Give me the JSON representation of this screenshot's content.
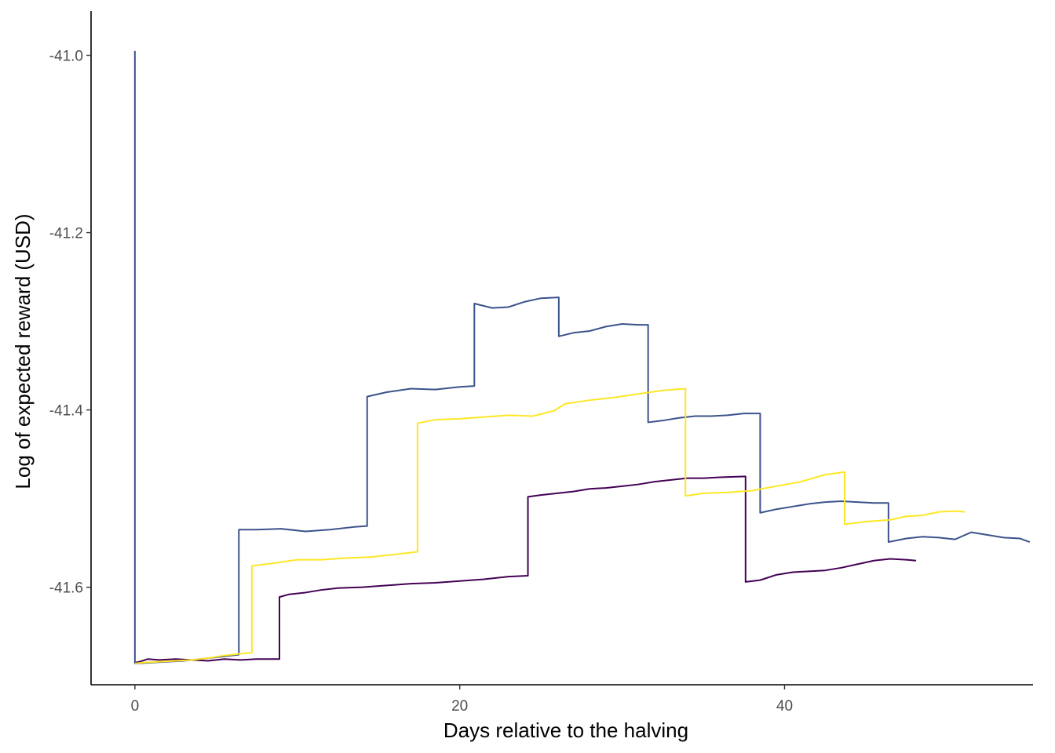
{
  "chart_data": {
    "type": "line",
    "title": "",
    "xlabel": "Days relative to the halving",
    "ylabel": "Log of expected reward (USD)",
    "xlim": [
      -2.7,
      55.3
    ],
    "ylim": [
      -41.71,
      -40.95
    ],
    "x_ticks": [
      0,
      20,
      40
    ],
    "y_ticks": [
      -41.6,
      -41.4,
      -41.2,
      -41.0
    ],
    "y_tick_labels": [
      "-41.6",
      "-41.4",
      "-41.2",
      "-41.0"
    ],
    "grid": false,
    "legend": "none",
    "series": [
      {
        "color": "#440154",
        "x": [
          0,
          0.3,
          0.8,
          1.5,
          2.5,
          3.5,
          4.5,
          5.5,
          6.5,
          7.5,
          8.9,
          8.9,
          9.5,
          10.5,
          11.5,
          12.5,
          14,
          15.5,
          17,
          18.5,
          20,
          21.5,
          23,
          24.2,
          24.2,
          25,
          26,
          27,
          28,
          29,
          30,
          31,
          32,
          33,
          34,
          35,
          36,
          37.6,
          37.6,
          38.5,
          39.5,
          40.5,
          41.5,
          42.5,
          43.5,
          44.5,
          45.5,
          46.5,
          47.5,
          48.1
        ],
        "values": [
          -41.685,
          -41.684,
          -41.681,
          -41.682,
          -41.681,
          -41.682,
          -41.683,
          -41.681,
          -41.682,
          -41.681,
          -41.681,
          -41.611,
          -41.608,
          -41.606,
          -41.603,
          -41.601,
          -41.6,
          -41.598,
          -41.596,
          -41.595,
          -41.593,
          -41.591,
          -41.588,
          -41.587,
          -41.498,
          -41.496,
          -41.494,
          -41.492,
          -41.489,
          -41.488,
          -41.486,
          -41.484,
          -41.481,
          -41.479,
          -41.477,
          -41.477,
          -41.476,
          -41.475,
          -41.594,
          -41.592,
          -41.586,
          -41.583,
          -41.582,
          -41.581,
          -41.578,
          -41.574,
          -41.57,
          -41.568,
          -41.569,
          -41.57
        ]
      },
      {
        "color": "#3b528b",
        "x": [
          0,
          0,
          0.1,
          1,
          2,
          3,
          4,
          5,
          6.4,
          6.4,
          7.5,
          9,
          10.5,
          12,
          13.5,
          14.3,
          14.3,
          15.5,
          17,
          18.5,
          20,
          20.9,
          20.9,
          22,
          23,
          24,
          25,
          26.1,
          26.1,
          27,
          28,
          29,
          30,
          31,
          31.6,
          31.6,
          32.5,
          33.5,
          34.5,
          35.5,
          36.5,
          37.5,
          38.5,
          38.5,
          39.5,
          40.5,
          41.5,
          42.5,
          43.5,
          44.5,
          45.5,
          46.4,
          46.4,
          47.5,
          48.5,
          49.5,
          50.5,
          51.5,
          52.5,
          53.5,
          54.5,
          55.1
        ],
        "values": [
          -40.995,
          -41.686,
          -41.686,
          -41.685,
          -41.684,
          -41.683,
          -41.681,
          -41.679,
          -41.676,
          -41.535,
          -41.535,
          -41.534,
          -41.537,
          -41.535,
          -41.532,
          -41.531,
          -41.385,
          -41.38,
          -41.376,
          -41.377,
          -41.374,
          -41.373,
          -41.28,
          -41.285,
          -41.284,
          -41.278,
          -41.274,
          -41.273,
          -41.317,
          -41.313,
          -41.311,
          -41.306,
          -41.303,
          -41.304,
          -41.304,
          -41.414,
          -41.412,
          -41.409,
          -41.407,
          -41.407,
          -41.406,
          -41.404,
          -41.404,
          -41.516,
          -41.512,
          -41.509,
          -41.506,
          -41.504,
          -41.503,
          -41.504,
          -41.505,
          -41.505,
          -41.549,
          -41.545,
          -41.543,
          -41.544,
          -41.546,
          -41.538,
          -41.541,
          -41.544,
          -41.545,
          -41.549
        ]
      },
      {
        "color": "#fde725",
        "x": [
          0,
          0.5,
          1.5,
          2.5,
          3.5,
          4.5,
          5.5,
          6.5,
          7.2,
          7.2,
          8.5,
          10,
          11.5,
          13,
          14.5,
          16,
          17.4,
          17.4,
          18.5,
          20,
          21.5,
          23,
          24.5,
          25.8,
          26.5,
          28,
          29.5,
          31,
          32.5,
          33.9,
          33.9,
          35,
          36.5,
          38,
          39.5,
          41,
          42.5,
          43.7,
          43.7,
          45,
          46.5,
          47.5,
          48.5,
          49.5,
          50.5,
          51.1
        ],
        "values": [
          -41.686,
          -41.685,
          -41.684,
          -41.683,
          -41.682,
          -41.68,
          -41.677,
          -41.675,
          -41.674,
          -41.576,
          -41.573,
          -41.569,
          -41.569,
          -41.567,
          -41.566,
          -41.563,
          -41.56,
          -41.415,
          -41.411,
          -41.41,
          -41.408,
          -41.406,
          -41.407,
          -41.401,
          -41.393,
          -41.389,
          -41.386,
          -41.382,
          -41.378,
          -41.376,
          -41.497,
          -41.494,
          -41.493,
          -41.491,
          -41.486,
          -41.481,
          -41.473,
          -41.47,
          -41.529,
          -41.526,
          -41.524,
          -41.52,
          -41.519,
          -41.515,
          -41.514,
          -41.515
        ]
      }
    ]
  }
}
